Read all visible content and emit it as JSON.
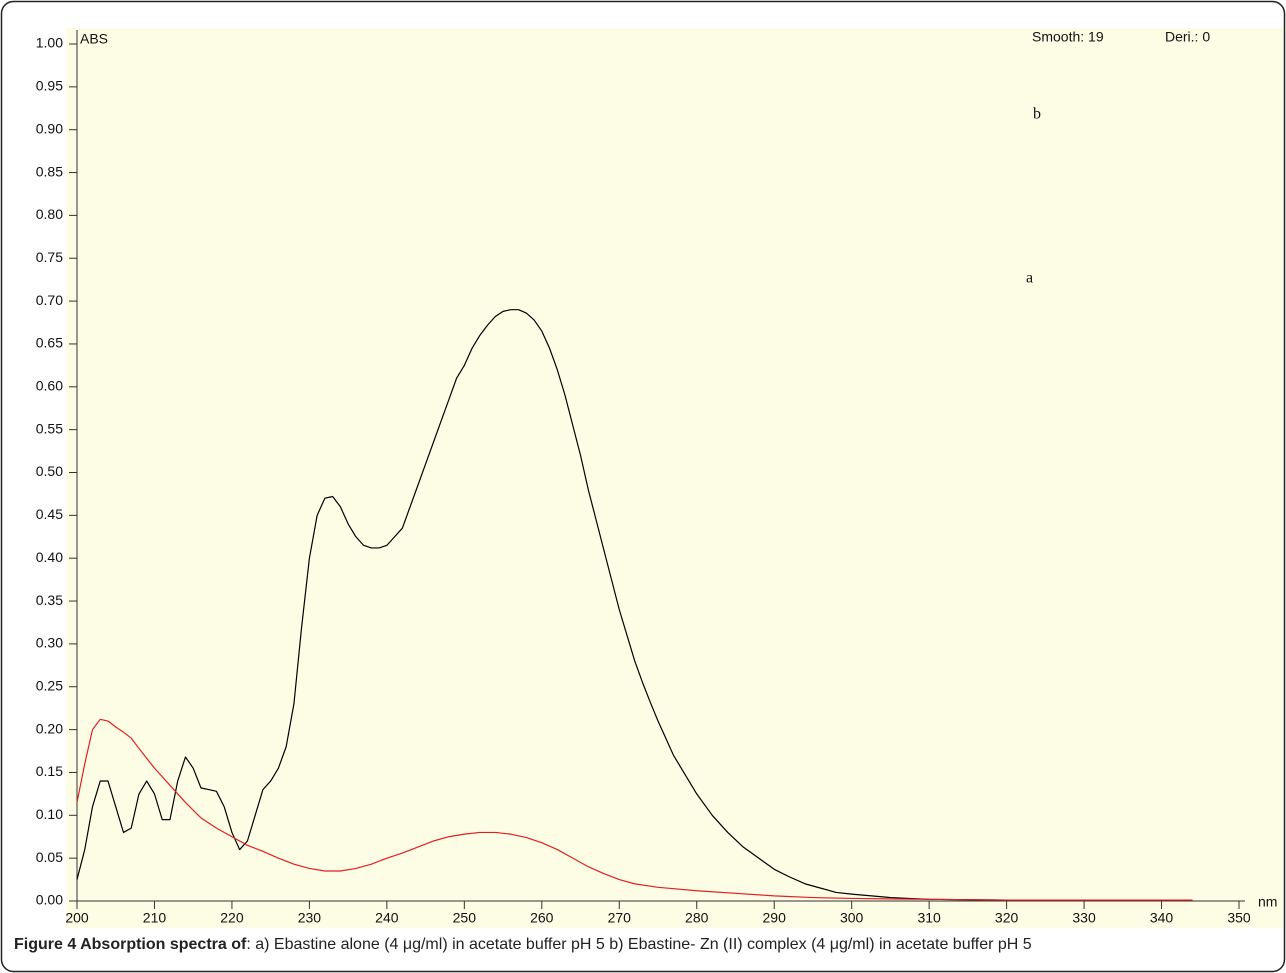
{
  "chart_data": {
    "type": "line",
    "caption_title": "Figure 4 Absorption spectra of",
    "caption_text": ": a) Ebastine alone (4 μg/ml) in acetate buffer pH 5 b) Ebastine- Zn (II) complex (4 μg/ml) in acetate buffer pH 5",
    "ylabel": "ABS",
    "xlabel": "nm",
    "annotations": [
      "Smooth: 19",
      "Deri.: 0",
      "b",
      "a"
    ],
    "xlim": [
      200,
      350
    ],
    "xticks": [
      200,
      210,
      220,
      230,
      240,
      250,
      260,
      270,
      280,
      290,
      300,
      310,
      320,
      330,
      340,
      350
    ],
    "ylim": [
      0,
      1
    ],
    "yticks": [
      {
        "value": 0,
        "label": "0.00"
      },
      {
        "value": 0.05,
        "label": "0.05"
      },
      {
        "value": 0.1,
        "label": "0.10"
      },
      {
        "value": 0.15,
        "label": "0.15"
      },
      {
        "value": 0.2,
        "label": "0.20"
      },
      {
        "value": 0.25,
        "label": "0.25"
      },
      {
        "value": 0.3,
        "label": "0.30"
      },
      {
        "value": 0.35,
        "label": "0.35"
      },
      {
        "value": 0.4,
        "label": "0.40"
      },
      {
        "value": 0.45,
        "label": "0.45"
      },
      {
        "value": 0.5,
        "label": "0.50"
      },
      {
        "value": 0.55,
        "label": "0.55"
      },
      {
        "value": 0.6,
        "label": "0.60"
      },
      {
        "value": 0.65,
        "label": "0.65"
      },
      {
        "value": 0.7,
        "label": "0.70"
      },
      {
        "value": 0.75,
        "label": "0.75"
      },
      {
        "value": 0.8,
        "label": "0.80"
      },
      {
        "value": 0.85,
        "label": "0.85"
      },
      {
        "value": 0.9,
        "label": "0.90"
      },
      {
        "value": 0.95,
        "label": "0.95"
      },
      {
        "value": 1,
        "label": "1.00"
      }
    ],
    "grid": false,
    "series": [
      {
        "color": "#000000",
        "x": [
          200,
          201,
          202,
          203,
          204,
          205,
          206,
          207,
          208,
          209,
          210,
          211,
          212,
          213,
          214,
          215,
          216,
          217,
          218,
          219,
          220,
          221,
          222,
          223,
          224,
          225,
          226,
          227,
          228,
          229,
          230,
          231,
          232,
          233,
          234,
          235,
          236,
          237,
          238,
          239,
          240,
          241,
          242,
          243,
          244,
          245,
          246,
          247,
          248,
          249,
          250,
          251,
          252,
          253,
          254,
          255,
          256,
          257,
          258,
          259,
          260,
          261,
          262,
          263,
          264,
          265,
          266,
          267,
          268,
          269,
          270,
          271,
          272,
          273,
          274,
          275,
          276,
          277,
          278,
          279,
          280,
          282,
          284,
          286,
          288,
          290,
          292,
          294,
          296,
          298,
          300,
          305,
          310,
          320,
          330,
          340,
          344
        ],
        "values": [
          0.025,
          0.06,
          0.11,
          0.14,
          0.14,
          0.11,
          0.08,
          0.085,
          0.125,
          0.14,
          0.125,
          0.095,
          0.095,
          0.14,
          0.168,
          0.155,
          0.132,
          0.13,
          0.128,
          0.11,
          0.08,
          0.06,
          0.07,
          0.1,
          0.13,
          0.14,
          0.155,
          0.18,
          0.23,
          0.32,
          0.4,
          0.45,
          0.47,
          0.472,
          0.46,
          0.44,
          0.425,
          0.415,
          0.412,
          0.412,
          0.415,
          0.425,
          0.435,
          0.46,
          0.485,
          0.51,
          0.535,
          0.56,
          0.585,
          0.61,
          0.625,
          0.645,
          0.66,
          0.672,
          0.682,
          0.688,
          0.69,
          0.69,
          0.686,
          0.678,
          0.665,
          0.645,
          0.62,
          0.59,
          0.555,
          0.52,
          0.48,
          0.445,
          0.41,
          0.375,
          0.34,
          0.31,
          0.28,
          0.255,
          0.232,
          0.21,
          0.19,
          0.17,
          0.155,
          0.14,
          0.125,
          0.1,
          0.08,
          0.063,
          0.05,
          0.037,
          0.028,
          0.02,
          0.015,
          0.01,
          0.008,
          0.004,
          0.002,
          0.001,
          0.001,
          0.001,
          0.001
        ]
      },
      {
        "color": "#e02020",
        "x": [
          200,
          201,
          202,
          203,
          204,
          205,
          206,
          207,
          208,
          210,
          212,
          214,
          216,
          218,
          220,
          222,
          224,
          226,
          228,
          230,
          232,
          234,
          236,
          238,
          240,
          242,
          244,
          246,
          248,
          250,
          252,
          254,
          256,
          258,
          260,
          262,
          264,
          266,
          268,
          270,
          272,
          275,
          280,
          285,
          290,
          295,
          300,
          310,
          320,
          330,
          344
        ],
        "values": [
          0.115,
          0.16,
          0.2,
          0.212,
          0.21,
          0.203,
          0.197,
          0.19,
          0.178,
          0.155,
          0.135,
          0.115,
          0.097,
          0.085,
          0.075,
          0.065,
          0.058,
          0.05,
          0.043,
          0.038,
          0.035,
          0.035,
          0.038,
          0.043,
          0.05,
          0.056,
          0.063,
          0.07,
          0.075,
          0.078,
          0.08,
          0.08,
          0.078,
          0.074,
          0.068,
          0.06,
          0.05,
          0.04,
          0.032,
          0.025,
          0.02,
          0.016,
          0.012,
          0.009,
          0.006,
          0.004,
          0.003,
          0.002,
          0.001,
          0.001,
          0.001
        ]
      }
    ]
  }
}
